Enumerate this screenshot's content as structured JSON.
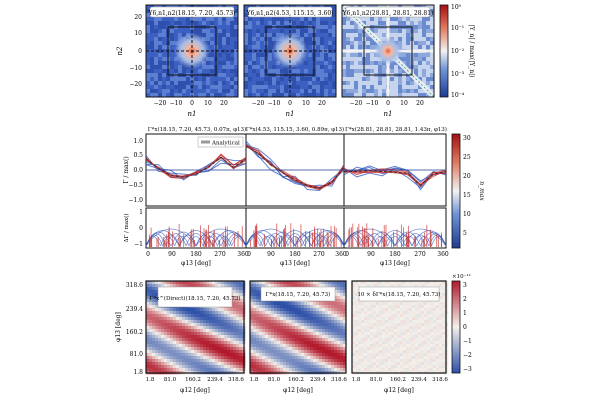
{
  "colors": {
    "blue": "#3b5fc0",
    "red": "#c9302c",
    "frame": "#111111",
    "teal": "#2aa7a0"
  },
  "row1": {
    "panel_titles": [
      "Y6,n1,n2(18.15, 7.20, 45.73)",
      "Y6,n1,n2(4.53, 115.15, 3.60)",
      "Y6,n1,n2(28.81, 28.81, 28.81)"
    ],
    "xlabel": "n1",
    "ylabel": "n2",
    "xticks": [
      "−20",
      "−10",
      "0",
      "10",
      "20"
    ],
    "yticks": [
      "20",
      "10",
      "0",
      "−10",
      "−20"
    ],
    "colorbar_label": "|Y_n| / max(|Y_n|)",
    "colorbar_ticks": [
      "10⁰",
      "10⁻¹",
      "10⁻²",
      "10⁻³",
      "10⁻⁴"
    ]
  },
  "row2": {
    "panel_titles": [
      "Γ*x(18.15, 7.20, 45.73, 0.07π, φ13)",
      "Γ*x(4.53, 115.15, 3.60, 0.89π, φ13)",
      "Γ*x(28.81, 28.81, 28.81, 1.43π, φ13)"
    ],
    "legend_label": "Analytical",
    "ylabel_top": "Γ / max()",
    "ylabel_bottom": "ΔΓ / max()",
    "xlabel": "φ13 [deg]",
    "top_yticks": [
      "1.0",
      "0.5",
      "0.0",
      "−0.5",
      "−1.0"
    ],
    "bottom_yticks": [
      "1",
      "0",
      "−1"
    ],
    "xticks": [
      "0",
      "90",
      "180",
      "270",
      "360"
    ],
    "colorbar_label": "n_max",
    "colorbar_ticks": [
      "30",
      "25",
      "20",
      "15",
      "10",
      "5"
    ]
  },
  "row3": {
    "panel_titles": [
      "Γ*x^(Direct)(18.15, 7.20, 45.73)",
      "Γ*x(18.15, 7.20, 45.73)",
      "10 × δΓ*x(18.15, 7.20, 45.73)"
    ],
    "xlabel": "φ12 [deg]",
    "ylabel": "φ13 [deg]",
    "xticks": [
      "1.8",
      "81.0",
      "160.2",
      "239.4",
      "318.6"
    ],
    "yticks": [
      "318.6",
      "239.4",
      "160.2",
      "81.0",
      "1.8"
    ],
    "colorbar_exponent": "×10⁻¹¹",
    "colorbar_ticks": [
      "3",
      "2",
      "1",
      "0",
      "−1",
      "−2",
      "−3"
    ]
  },
  "chart_data": [
    {
      "type": "heatmap",
      "title": "Y6,n1,n2(18.15, 7.20, 45.73)",
      "xlabel": "n1",
      "ylabel": "n2",
      "xlim": [
        -30,
        30
      ],
      "ylim": [
        -30,
        30
      ],
      "color_scale": "log",
      "zlim": [
        0.0001,
        1
      ]
    },
    {
      "type": "heatmap",
      "title": "Y6,n1,n2(4.53, 115.15, 3.60)",
      "xlabel": "n1",
      "ylabel": "n2",
      "xlim": [
        -30,
        30
      ],
      "ylim": [
        -30,
        30
      ],
      "color_scale": "log",
      "zlim": [
        0.0001,
        1
      ]
    },
    {
      "type": "heatmap",
      "title": "Y6,n1,n2(28.81, 28.81, 28.81)",
      "xlabel": "n1",
      "ylabel": "n2",
      "xlim": [
        -30,
        30
      ],
      "ylim": [
        -30,
        30
      ],
      "color_scale": "log",
      "zlim": [
        0.0001,
        1
      ]
    },
    {
      "type": "line",
      "title": "Γ*x(18.15, 7.20, 45.73, 0.07π, φ13)",
      "xlabel": "φ13 [deg]",
      "xlim": [
        0,
        360
      ],
      "ylim": [
        -1.2,
        1.2
      ],
      "series": [
        {
          "name": "Analytical",
          "x": [
            0,
            45,
            90,
            135,
            180,
            225,
            270,
            315,
            360
          ],
          "y": [
            0.4,
            0.05,
            -0.2,
            -0.25,
            -0.15,
            0.1,
            0.45,
            0.1,
            0.4
          ]
        }
      ]
    },
    {
      "type": "line",
      "title": "Γ*x(4.53, 115.15, 3.60, 0.89π, φ13)",
      "xlabel": "φ13 [deg]",
      "xlim": [
        0,
        360
      ],
      "ylim": [
        -1.2,
        1.2
      ],
      "series": [
        {
          "name": "Analytical",
          "x": [
            0,
            45,
            90,
            135,
            180,
            225,
            270,
            315,
            360
          ],
          "y": [
            0.85,
            0.6,
            0.2,
            -0.1,
            -0.35,
            -0.55,
            -0.65,
            -0.45,
            0.1
          ]
        }
      ]
    },
    {
      "type": "line",
      "title": "Γ*x(28.81, 28.81, 28.81, 1.43π, φ13)",
      "xlabel": "φ13 [deg]",
      "xlim": [
        0,
        360
      ],
      "ylim": [
        -1.2,
        1.2
      ],
      "series": [
        {
          "name": "Analytical",
          "x": [
            0,
            45,
            90,
            135,
            180,
            225,
            270,
            315,
            360
          ],
          "y": [
            -0.05,
            -0.05,
            -0.02,
            -0.05,
            -0.08,
            -0.12,
            -0.55,
            -0.15,
            -0.05
          ]
        }
      ]
    },
    {
      "type": "heatmap",
      "title": "Γ*x^(Direct)(18.15, 7.20, 45.73)",
      "xlabel": "φ12 [deg]",
      "ylabel": "φ13 [deg]",
      "xlim": [
        1.8,
        358.2
      ],
      "ylim": [
        1.8,
        358.2
      ]
    },
    {
      "type": "heatmap",
      "title": "Γ*x(18.15, 7.20, 45.73)",
      "xlabel": "φ12 [deg]",
      "ylabel": "φ13 [deg]",
      "xlim": [
        1.8,
        358.2
      ],
      "ylim": [
        1.8,
        358.2
      ]
    },
    {
      "type": "heatmap",
      "title": "10 × δΓ*x(18.15, 7.20, 45.73)",
      "xlabel": "φ12 [deg]",
      "ylabel": "φ13 [deg]",
      "xlim": [
        1.8,
        358.2
      ],
      "ylim": [
        1.8,
        358.2
      ],
      "zlim": [
        -3e-11,
        3e-11
      ]
    }
  ]
}
